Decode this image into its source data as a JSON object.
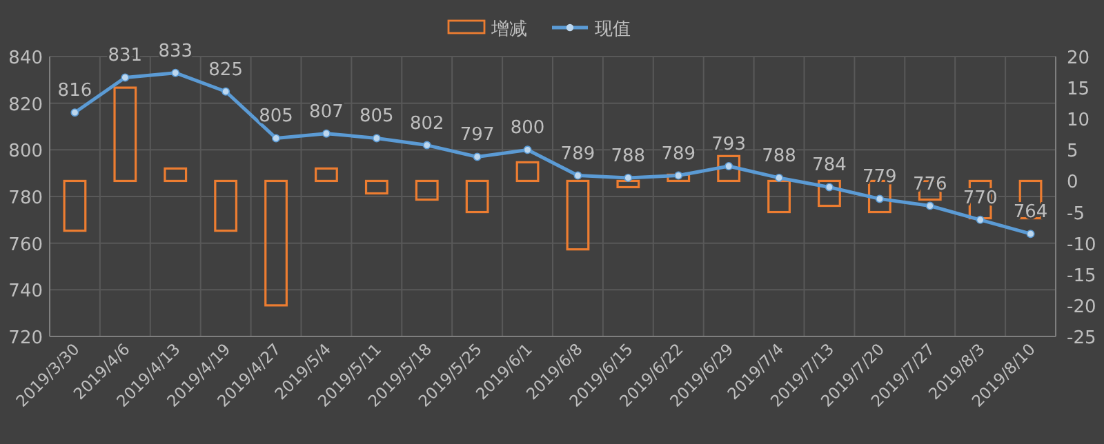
{
  "chart_data": {
    "type": "bar",
    "categories": [
      "2019/3/30",
      "2019/4/6",
      "2019/4/13",
      "2019/4/19",
      "2019/4/27",
      "2019/5/4",
      "2019/5/11",
      "2019/5/18",
      "2019/5/25",
      "2019/6/1",
      "2019/6/8",
      "2019/6/15",
      "2019/6/22",
      "2019/6/29",
      "2019/7/4",
      "2019/7/13",
      "2019/7/20",
      "2019/7/27",
      "2019/8/3",
      "2019/8/10"
    ],
    "series": [
      {
        "name": "增减",
        "axis": "y2",
        "color": "#ed7d31",
        "values": [
          -8,
          15,
          2,
          -8,
          -20,
          2,
          -2,
          -3,
          -5,
          3,
          -11,
          -1,
          1,
          4,
          -5,
          -4,
          -5,
          -3,
          -6,
          -6
        ]
      },
      {
        "name": "现值",
        "type": "line",
        "color": "#5b9bd5",
        "values": [
          816,
          831,
          833,
          825,
          805,
          807,
          805,
          802,
          797,
          800,
          789,
          788,
          789,
          793,
          788,
          784,
          779,
          776,
          770,
          764
        ],
        "value_labels": [
          "816",
          "831",
          "833",
          "825",
          "805",
          "807",
          "805",
          "802",
          "797",
          "800",
          "789",
          "788",
          "789",
          "793",
          "788",
          "784",
          "779",
          "776",
          "770",
          "764"
        ]
      }
    ],
    "ylim": [
      720,
      840
    ],
    "yticks": [
      720,
      740,
      760,
      780,
      800,
      820,
      840
    ],
    "y2lim": [
      -25,
      20
    ],
    "y2ticks": [
      -25,
      -20,
      -15,
      -10,
      -5,
      0,
      5,
      10,
      15,
      20
    ],
    "grid": true,
    "legend": "top",
    "marker": "circle",
    "line_style": "solid"
  }
}
